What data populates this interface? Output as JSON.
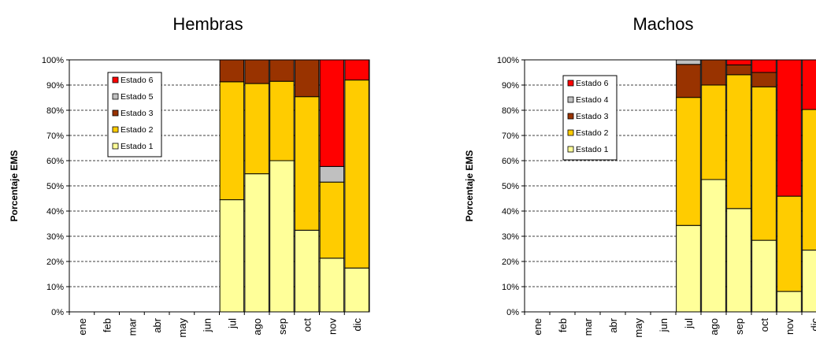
{
  "chart_data": [
    {
      "type": "bar",
      "stacked": true,
      "title": "Hembras",
      "ylabel": "Porcentaje EMS",
      "xlabel": "",
      "ylim": [
        0,
        100
      ],
      "yticks": [
        "0%",
        "10%",
        "20%",
        "30%",
        "40%",
        "50%",
        "60%",
        "70%",
        "80%",
        "90%",
        "100%"
      ],
      "categories": [
        "ene",
        "feb",
        "mar",
        "abr",
        "may",
        "jun",
        "jul",
        "ago",
        "sep",
        "oct",
        "nov",
        "dic"
      ],
      "grid": "horizontal dashed",
      "legend_position": "top-left",
      "series": [
        {
          "name": "Estado 1",
          "color": "#ffff99",
          "values": [
            0,
            0,
            0,
            0,
            0,
            0,
            44.5,
            54.8,
            60,
            32.4,
            21.3,
            17.4
          ]
        },
        {
          "name": "Estado 2",
          "color": "#ffcc00",
          "values": [
            0,
            0,
            0,
            0,
            0,
            0,
            46.8,
            35.8,
            31.5,
            53,
            30.2,
            74.6
          ]
        },
        {
          "name": "Estado 3",
          "color": "#993300",
          "values": [
            0,
            0,
            0,
            0,
            0,
            0,
            8.7,
            9.4,
            8.5,
            14.6,
            0,
            0
          ]
        },
        {
          "name": "Estado 5",
          "color": "#c0c0c0",
          "values": [
            0,
            0,
            0,
            0,
            0,
            0,
            0,
            0,
            0,
            0,
            6.2,
            0
          ]
        },
        {
          "name": "Estado 6",
          "color": "#ff0000",
          "values": [
            0,
            0,
            0,
            0,
            0,
            0,
            0,
            0,
            0,
            0,
            42.3,
            8
          ]
        }
      ]
    },
    {
      "type": "bar",
      "stacked": true,
      "title": "Machos",
      "ylabel": "Porcentaje EMS",
      "xlabel": "",
      "ylim": [
        0,
        100
      ],
      "yticks": [
        "0%",
        "10%",
        "20%",
        "30%",
        "40%",
        "50%",
        "60%",
        "70%",
        "80%",
        "90%",
        "100%"
      ],
      "categories": [
        "ene",
        "feb",
        "mar",
        "abr",
        "may",
        "jun",
        "jul",
        "ago",
        "sep",
        "oct",
        "nov",
        "dic"
      ],
      "grid": "horizontal dashed",
      "legend_position": "top-left",
      "series": [
        {
          "name": "Estado 1",
          "color": "#ffff99",
          "values": [
            0,
            0,
            0,
            0,
            0,
            0,
            34.3,
            52.5,
            41,
            28.4,
            8.1,
            24.5
          ]
        },
        {
          "name": "Estado 2",
          "color": "#ffcc00",
          "values": [
            0,
            0,
            0,
            0,
            0,
            0,
            50.8,
            37.5,
            53.1,
            60.9,
            37.8,
            55.8
          ]
        },
        {
          "name": "Estado 3",
          "color": "#993300",
          "values": [
            0,
            0,
            0,
            0,
            0,
            0,
            13.1,
            10,
            3.9,
            5.7,
            0,
            0
          ]
        },
        {
          "name": "Estado 4",
          "color": "#c0c0c0",
          "values": [
            0,
            0,
            0,
            0,
            0,
            0,
            1.8,
            0,
            0,
            0,
            0,
            0
          ]
        },
        {
          "name": "Estado 6",
          "color": "#ff0000",
          "values": [
            0,
            0,
            0,
            0,
            0,
            0,
            0,
            0,
            2,
            5,
            54.1,
            19.7
          ]
        }
      ]
    }
  ]
}
